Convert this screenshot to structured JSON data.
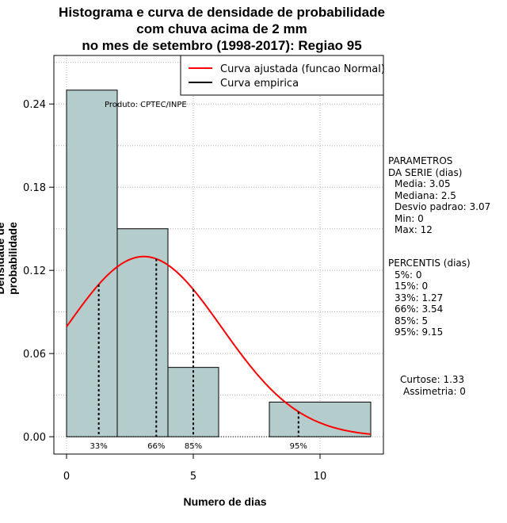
{
  "title_lines": [
    "Histograma e curva de densidade de probabilidade",
    "com chuva acima de 2 mm",
    "no mes de setembro (1998-2017): Regiao 95"
  ],
  "product_note": "Produto: CPTEC/INPE",
  "parametros": {
    "header1": "PARAMETROS",
    "header2": "DA SERIE (dias)",
    "media": "Media: 3.05",
    "mediana": "Mediana: 2.5",
    "desvio": "Desvio padrao: 3.07",
    "min": "Min: 0",
    "max": "Max: 12"
  },
  "percentis": {
    "header": "PERCENTIS (dias)",
    "p5": "5%: 0",
    "p15": "15%: 0",
    "p33": "33%: 1.27",
    "p66": "66%: 3.54",
    "p85": "85%: 5",
    "p95": "95%: 9.15"
  },
  "curtose": "Curtose: 1.33",
  "assimetria": "Assimetria: 0",
  "chart_data": {
    "type": "bar",
    "xlabel": "Numero de dias",
    "ylabel": "Densidade de probabilidade",
    "xlim": [
      -0.5,
      12.5
    ],
    "ylim": [
      -0.0125,
      0.275
    ],
    "x_ticks": [
      0,
      5,
      10
    ],
    "y_ticks": [
      0.0,
      0.06,
      0.12,
      0.18,
      0.24
    ],
    "y_tick_labels": [
      "0.00",
      "0.06",
      "0.12",
      "0.18",
      "0.24"
    ],
    "bins": [
      {
        "x0": 0,
        "x1": 2,
        "density": 0.25
      },
      {
        "x0": 2,
        "x1": 4,
        "density": 0.15
      },
      {
        "x0": 4,
        "x1": 6,
        "density": 0.05
      },
      {
        "x0": 6,
        "x1": 8,
        "density": 0.0
      },
      {
        "x0": 8,
        "x1": 12,
        "density": 0.025
      }
    ],
    "normal_curve": {
      "name": "Curva ajustada (funcao Normal)",
      "mean": 3.05,
      "sd": 3.07,
      "x_range": [
        0,
        12
      ],
      "color": "#ff0000"
    },
    "empirical_curve": {
      "name": "Curva empirica",
      "color": "#000000"
    },
    "percentile_markers": [
      {
        "label": "33%",
        "x": 1.27
      },
      {
        "label": "66%",
        "x": 3.54
      },
      {
        "label": "85%",
        "x": 5
      },
      {
        "label": "95%",
        "x": 9.15
      }
    ],
    "bar_fill": "#b4cccc",
    "grid": true,
    "legend_position": "top-right"
  }
}
